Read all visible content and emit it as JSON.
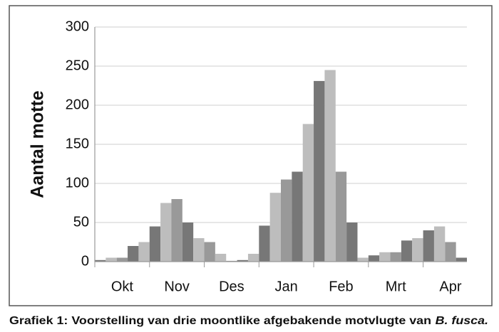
{
  "chart_data": {
    "type": "bar",
    "ylabel": "Aantal motte",
    "categories": [
      null,
      null,
      "Okt",
      null,
      null,
      null,
      null,
      "Nov",
      null,
      null,
      null,
      null,
      "Des",
      null,
      null,
      null,
      null,
      "Jan",
      null,
      null,
      null,
      null,
      "Feb",
      null,
      null,
      null,
      null,
      "Mrt",
      null,
      null,
      null,
      null,
      "Apr",
      null
    ],
    "values": [
      2,
      5,
      5,
      20,
      25,
      45,
      75,
      80,
      50,
      30,
      25,
      10,
      1,
      2,
      10,
      46,
      88,
      105,
      115,
      176,
      231,
      245,
      115,
      50,
      5,
      8,
      12,
      12,
      27,
      30,
      40,
      45,
      25,
      5
    ],
    "colors": [
      "#777777",
      "#bdbdbd",
      "#999999",
      "#777777",
      "#bdbdbd",
      "#777777",
      "#bdbdbd",
      "#999999",
      "#777777",
      "#bdbdbd",
      "#999999",
      "#bdbdbd",
      "#999999",
      "#777777",
      "#bdbdbd",
      "#777777",
      "#bdbdbd",
      "#999999",
      "#777777",
      "#bdbdbd",
      "#777777",
      "#bdbdbd",
      "#999999",
      "#777777",
      "#bdbdbd",
      "#777777",
      "#bdbdbd",
      "#999999",
      "#777777",
      "#bdbdbd",
      "#777777",
      "#bdbdbd",
      "#999999",
      "#777777"
    ],
    "ylim": [
      0,
      300
    ],
    "yticks": [
      0,
      50,
      100,
      150,
      200,
      250,
      300
    ],
    "grid": true,
    "caption": [
      "Grafiek 1: Voorstelling van drie moontlike afgebakende motvlugte van",
      "B. fusca."
    ]
  }
}
